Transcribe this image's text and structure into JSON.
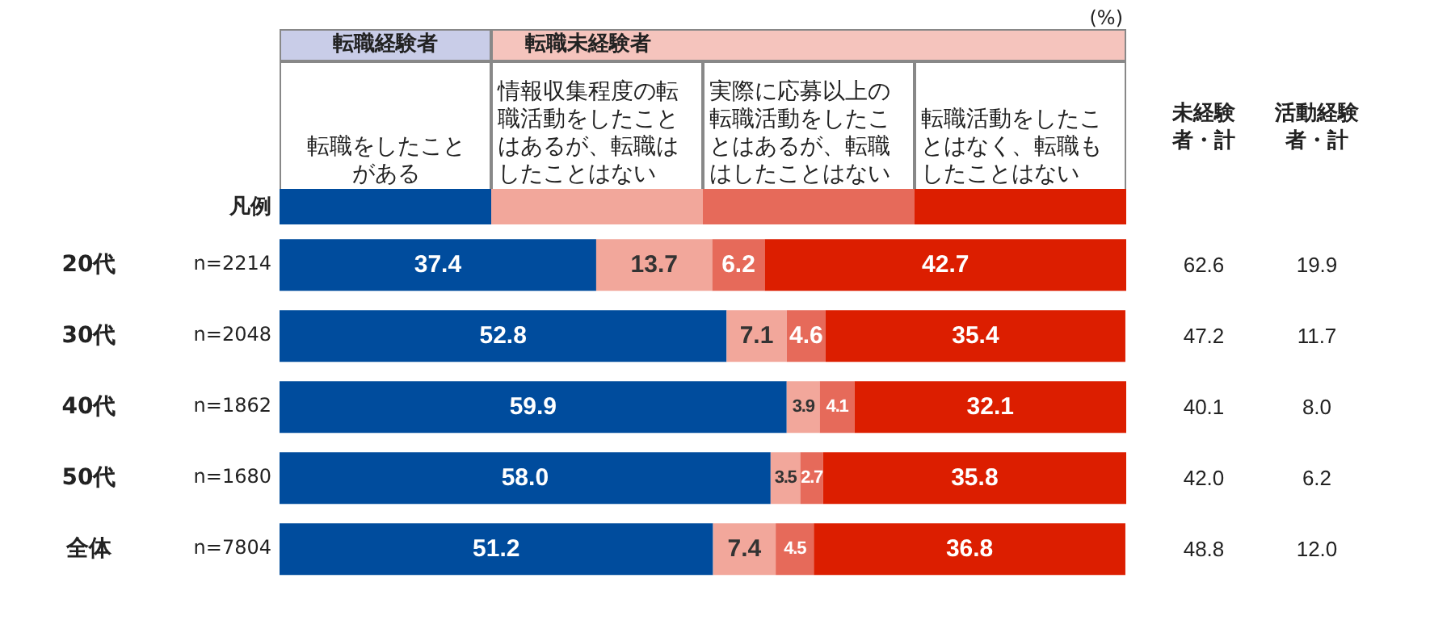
{
  "chart_data": [
    {
      "type": "bar",
      "orientation": "horizontal",
      "stacked": true,
      "xlim": [
        0,
        100
      ],
      "xlabel": "(%)",
      "legend": "top",
      "legend_title": "凡例",
      "categories": [
        "20代",
        "30代",
        "40代",
        "50代",
        "全体"
      ],
      "series": [
        {
          "name": "転職をしたことがある",
          "color": "#004c9d",
          "values": [
            37.4,
            52.8,
            59.9,
            58.0,
            51.2
          ],
          "value_labels": [
            "37.4",
            "52.8",
            "59.9",
            "58.0",
            "51.2"
          ]
        },
        {
          "name": "情報収集程度の転職活動をしたことはあるが、転職はしたことはない",
          "color": "#f2a79b",
          "values": [
            13.7,
            7.1,
            3.9,
            3.5,
            7.4
          ],
          "value_labels": [
            "13.7",
            "7.1",
            "3.9",
            "3.5",
            "7.4"
          ]
        },
        {
          "name": "実際に応募以上の転職活動をしたことはあるが、転職はしたことはない",
          "color": "#e66a5a",
          "values": [
            6.2,
            4.6,
            4.1,
            2.7,
            4.5
          ],
          "value_labels": [
            "6.2",
            "4.6",
            "4.1",
            "2.7",
            "4.5"
          ]
        },
        {
          "name": "転職活動をしたことはなく、転職もしたことはない",
          "color": "#dc1e00",
          "values": [
            42.7,
            35.4,
            32.1,
            35.8,
            36.8
          ],
          "value_labels": [
            "42.7",
            "35.4",
            "32.1",
            "35.8",
            "36.8"
          ]
        }
      ],
      "annotations": [
        "転職経験者",
        "転職未経験者",
        "n=2214",
        "n=2048",
        "n=1862",
        "n=1680",
        "n=7804"
      ]
    },
    {
      "type": "heatmap",
      "tick_labels": "x",
      "categories": [
        "未経験者・計",
        "活動経験者・計"
      ],
      "y_categories": [
        "20代",
        "30代",
        "40代",
        "50代",
        "全体"
      ],
      "cells": [
        [
          62.6,
          19.9
        ],
        [
          47.2,
          11.7
        ],
        [
          40.1,
          8.0
        ],
        [
          42.0,
          6.2
        ],
        [
          48.8,
          12.0
        ]
      ],
      "cell_labels": [
        [
          "62.6",
          "19.9"
        ],
        [
          "47.2",
          "11.7"
        ],
        [
          "40.1",
          "8.0"
        ],
        [
          "42.0",
          "6.2"
        ],
        [
          "48.8",
          "12.0"
        ]
      ]
    }
  ]
}
